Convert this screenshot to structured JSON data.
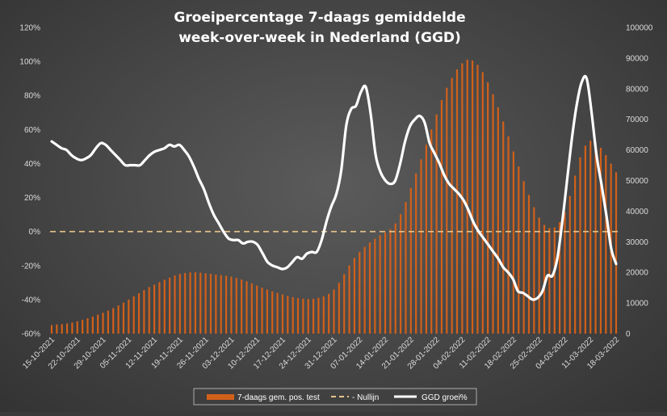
{
  "chart_data": {
    "type": "bar",
    "title_lines": [
      "Groeipercentage 7-daags gemiddelde",
      "week-over-week in Nederland (GGD)"
    ],
    "y_left": {
      "range": [
        -0.6,
        1.2
      ],
      "ticks": [
        -0.6,
        -0.4,
        -0.2,
        0,
        0.2,
        0.4,
        0.6,
        0.8,
        1.0,
        1.2
      ],
      "tick_labels": [
        "-60%",
        "-40%",
        "-20%",
        "0%",
        "20%",
        "40%",
        "60%",
        "80%",
        "100%",
        "120%"
      ]
    },
    "y_right": {
      "range": [
        0,
        100000
      ],
      "ticks": [
        0,
        10000,
        20000,
        30000,
        40000,
        50000,
        60000,
        70000,
        80000,
        90000,
        100000
      ],
      "tick_labels": [
        "0",
        "10000",
        "20000",
        "30000",
        "40000",
        "50000",
        "60000",
        "70000",
        "80000",
        "90000",
        "100000"
      ]
    },
    "x_axis": {
      "start": "2021-10-15",
      "end": "2022-03-18",
      "tick_labels": [
        "15-10-2021",
        "22-10-2021",
        "29-10-2021",
        "05-11-2021",
        "12-11-2021",
        "19-11-2021",
        "26-11-2021",
        "03-12-2021",
        "10-12-2021",
        "17-12-2021",
        "24-12-2021",
        "31-12-2021",
        "07-01-2022",
        "14-01-2022",
        "21-01-2022",
        "28-01-2022",
        "04-02-2022",
        "11-02-2022",
        "18-02-2022",
        "25-02-2022",
        "04-03-2022",
        "11-03-2022",
        "18-03-2022"
      ]
    },
    "series": [
      {
        "name": "7-daags gem. pos. test",
        "type": "bar",
        "axis": "right",
        "color": "#d2601a",
        "values": [
          2800,
          3000,
          3100,
          3300,
          3600,
          4000,
          4500,
          5000,
          5600,
          6200,
          6800,
          7500,
          8300,
          9200,
          10100,
          11100,
          12200,
          13200,
          14200,
          15200,
          16000,
          16800,
          17600,
          18300,
          19000,
          19500,
          19800,
          20000,
          20000,
          19900,
          19700,
          19500,
          19300,
          19100,
          18900,
          18600,
          18200,
          17700,
          17100,
          16400,
          15700,
          15000,
          14400,
          13800,
          13300,
          12800,
          12300,
          11900,
          11600,
          11400,
          11300,
          11400,
          11700,
          12200,
          13000,
          14400,
          16600,
          19400,
          22300,
          24700,
          26700,
          28300,
          29800,
          31000,
          32100,
          33000,
          34100,
          36000,
          39000,
          43000,
          47600,
          52300,
          56900,
          61700,
          66700,
          71600,
          76300,
          80300,
          83500,
          86300,
          88300,
          89500,
          89200,
          87800,
          85400,
          82100,
          78200,
          73900,
          69300,
          64400,
          59500,
          54600,
          49800,
          45300,
          41300,
          37900,
          35500,
          34500,
          34700,
          36400,
          39700,
          45000,
          51600,
          57600,
          61400,
          63000,
          62500,
          60700,
          58300,
          55500,
          52700
        ]
      },
      {
        "name": "- Nullijn",
        "type": "line",
        "axis": "left",
        "color": "#e8c48a",
        "values": [
          0,
          0
        ]
      },
      {
        "name": "GGD groei%",
        "type": "line",
        "axis": "left",
        "color": "#ffffff",
        "values": [
          0.53,
          0.51,
          0.49,
          0.48,
          0.45,
          0.43,
          0.42,
          0.43,
          0.45,
          0.49,
          0.52,
          0.51,
          0.48,
          0.45,
          0.42,
          0.39,
          0.39,
          0.39,
          0.39,
          0.42,
          0.45,
          0.47,
          0.48,
          0.49,
          0.51,
          0.5,
          0.51,
          0.48,
          0.44,
          0.38,
          0.31,
          0.25,
          0.17,
          0.1,
          0.05,
          0.0,
          -0.04,
          -0.05,
          -0.05,
          -0.07,
          -0.06,
          -0.06,
          -0.08,
          -0.13,
          -0.18,
          -0.2,
          -0.21,
          -0.22,
          -0.21,
          -0.18,
          -0.15,
          -0.16,
          -0.13,
          -0.12,
          -0.12,
          -0.05,
          0.06,
          0.15,
          0.22,
          0.36,
          0.62,
          0.72,
          0.74,
          0.82,
          0.85,
          0.69,
          0.45,
          0.35,
          0.3,
          0.28,
          0.3,
          0.4,
          0.53,
          0.62,
          0.66,
          0.68,
          0.64,
          0.52,
          0.46,
          0.4,
          0.33,
          0.28,
          0.25,
          0.22,
          0.18,
          0.12,
          0.05,
          0.0,
          -0.04,
          -0.08,
          -0.12,
          -0.16,
          -0.21,
          -0.24,
          -0.28,
          -0.35,
          -0.36,
          -0.38,
          -0.4,
          -0.39,
          -0.35,
          -0.26,
          -0.26,
          -0.16,
          0.05,
          0.3,
          0.55,
          0.75,
          0.88,
          0.9,
          0.7,
          0.45,
          0.28,
          0.1,
          -0.1,
          -0.19
        ]
      }
    ],
    "legend": {
      "position": "bottom",
      "entries": [
        "7-daags gem. pos. test",
        "- Nullijn",
        "GGD groei%"
      ]
    },
    "grid": false
  }
}
